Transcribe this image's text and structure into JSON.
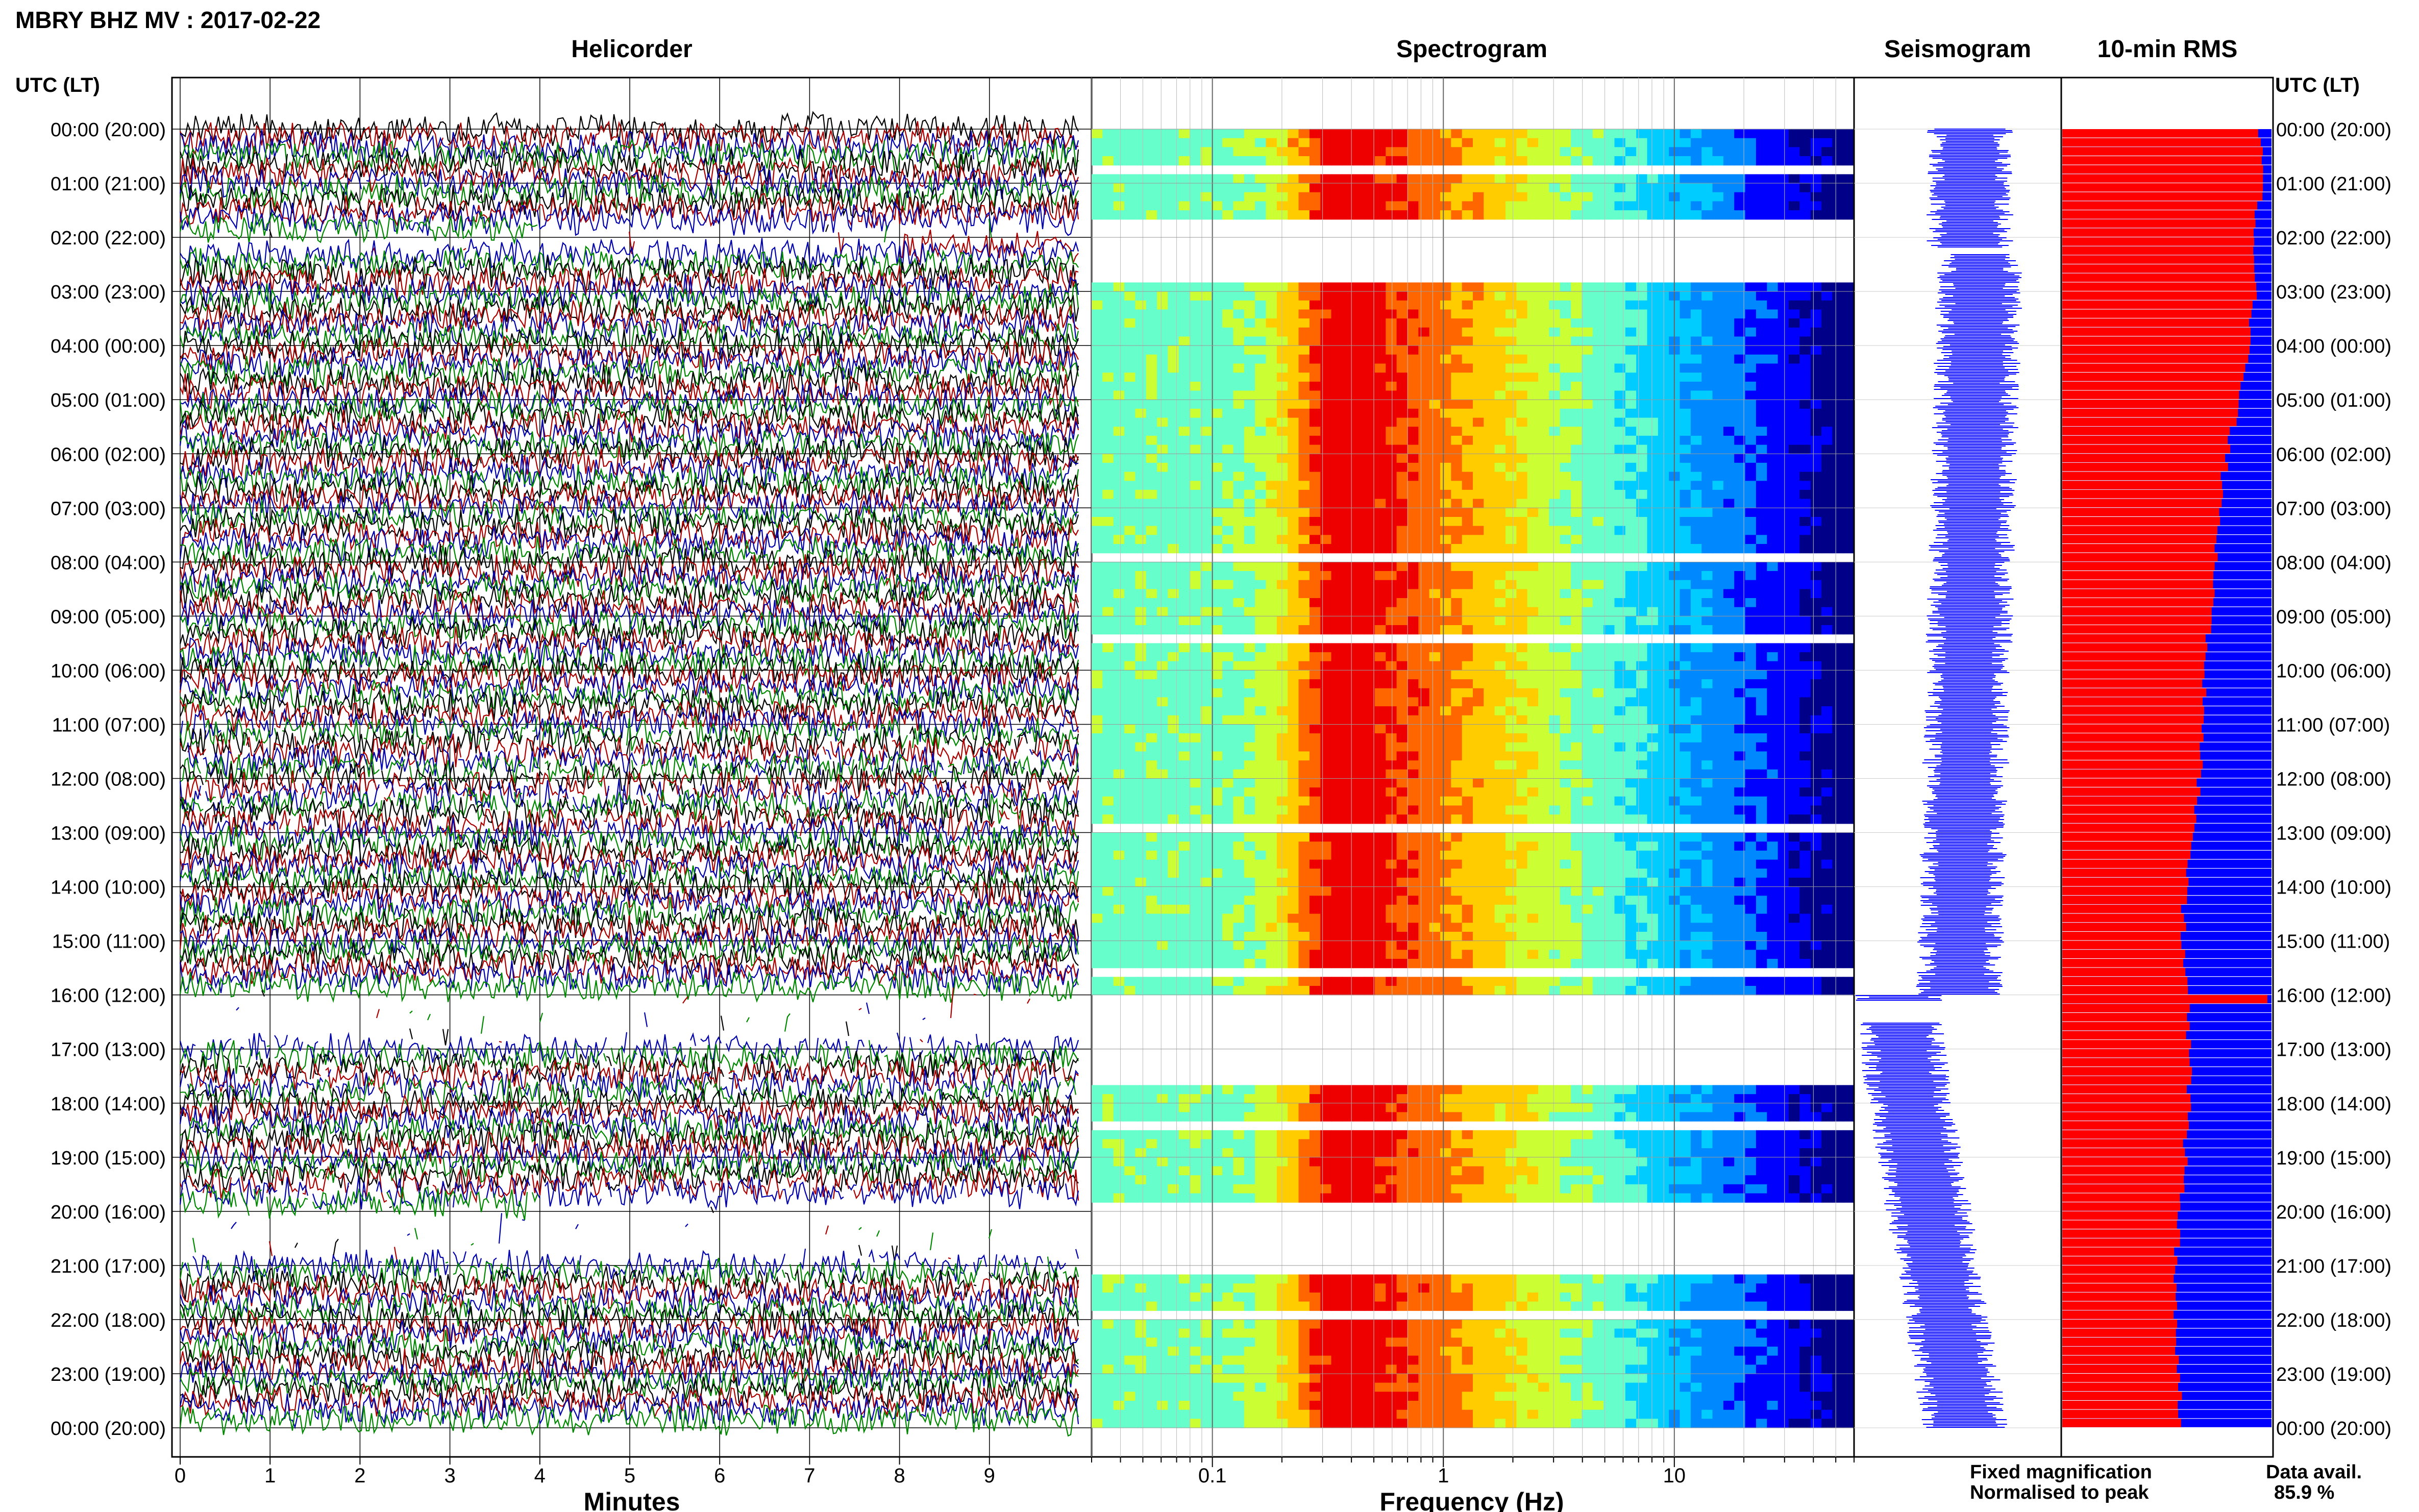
{
  "page_title": "MBRY BHZ MV : 2017-02-22",
  "time_header_left": "UTC (LT)",
  "time_header_right": "UTC (LT)",
  "panel_titles": {
    "helicorder": "Helicorder",
    "spectrogram": "Spectrogram",
    "seismogram": "Seismogram",
    "rms": "10-min RMS"
  },
  "legend": {
    "fixed": "Fixed magnification",
    "normalised": "Normalised to peak",
    "fixed_color": "#0000ff",
    "normalised_color": "#ff0000"
  },
  "data_avail": {
    "label": "Data avail.",
    "value": "85.9 %"
  },
  "chart_data": [
    {
      "type": "helicorder",
      "title": "Helicorder",
      "xlabel": "Minutes",
      "xlim": [
        0,
        10
      ],
      "xticks": [
        "0",
        "1",
        "2",
        "3",
        "4",
        "5",
        "6",
        "7",
        "8",
        "9"
      ],
      "time_labels": [
        "00:00 (20:00)",
        "01:00 (21:00)",
        "02:00 (22:00)",
        "03:00 (23:00)",
        "04:00 (00:00)",
        "05:00 (01:00)",
        "06:00 (02:00)",
        "07:00 (03:00)",
        "08:00 (04:00)",
        "09:00 (05:00)",
        "10:00 (06:00)",
        "11:00 (07:00)",
        "12:00 (08:00)",
        "13:00 (09:00)",
        "14:00 (10:00)",
        "15:00 (11:00)",
        "16:00 (12:00)",
        "17:00 (13:00)",
        "18:00 (14:00)",
        "19:00 (15:00)",
        "20:00 (16:00)",
        "21:00 (17:00)",
        "22:00 (18:00)",
        "23:00 (19:00)",
        "00:00 (20:00)"
      ],
      "trace_colors": [
        "#000000",
        "#aa0000",
        "#0000aa",
        "#008800"
      ],
      "gaps_hours": [
        [
          1.9,
          2.3
        ],
        [
          16.0,
          17.0
        ],
        [
          19.9,
          21.0
        ]
      ]
    },
    {
      "type": "heatmap",
      "title": "Spectrogram",
      "xlabel": "Frequency (Hz)",
      "xscale": "log",
      "xlim": [
        0.03,
        60
      ],
      "xticks": [
        "0.1",
        "1",
        "10"
      ],
      "peak_frequency_hz": 0.4,
      "colormap": [
        "#000088",
        "#0000ff",
        "#0088ff",
        "#00ccff",
        "#66ffcc",
        "#ccff33",
        "#ffcc00",
        "#ff6600",
        "#ee0000"
      ],
      "gaps_hours": [
        [
          0.6,
          0.9
        ],
        [
          1.6,
          2.6
        ],
        [
          16.0,
          17.6
        ],
        [
          19.9,
          21.1
        ],
        [
          21.8,
          22.0
        ]
      ]
    },
    {
      "type": "line",
      "title": "Seismogram",
      "color": "#0000ff",
      "gaps_hours": [
        [
          2.2,
          2.3
        ],
        [
          16.1,
          16.5
        ]
      ]
    },
    {
      "type": "bar",
      "title": "10-min RMS",
      "orientation": "horizontal",
      "bins": 144,
      "series": [
        {
          "name": "Fixed magnification",
          "color": "#0000ff"
        },
        {
          "name": "Normalised to peak",
          "color": "#ff0000"
        }
      ],
      "normalised_profile": [
        [
          0,
          0.96
        ],
        [
          1,
          0.97
        ],
        [
          2,
          0.92
        ],
        [
          3,
          0.93
        ],
        [
          4,
          0.91
        ],
        [
          5,
          0.86
        ],
        [
          6,
          0.8
        ],
        [
          7,
          0.76
        ],
        [
          8,
          0.74
        ],
        [
          9,
          0.72
        ],
        [
          10,
          0.7
        ],
        [
          11,
          0.69
        ],
        [
          12,
          0.67
        ],
        [
          13,
          0.63
        ],
        [
          14,
          0.6
        ],
        [
          15,
          0.59
        ],
        [
          16,
          0.61
        ],
        [
          17,
          0.62
        ],
        [
          18,
          0.62
        ],
        [
          19,
          0.6
        ],
        [
          20,
          0.57
        ],
        [
          21,
          0.56
        ],
        [
          22,
          0.55
        ],
        [
          23,
          0.58
        ],
        [
          24,
          0.57
        ]
      ]
    }
  ]
}
